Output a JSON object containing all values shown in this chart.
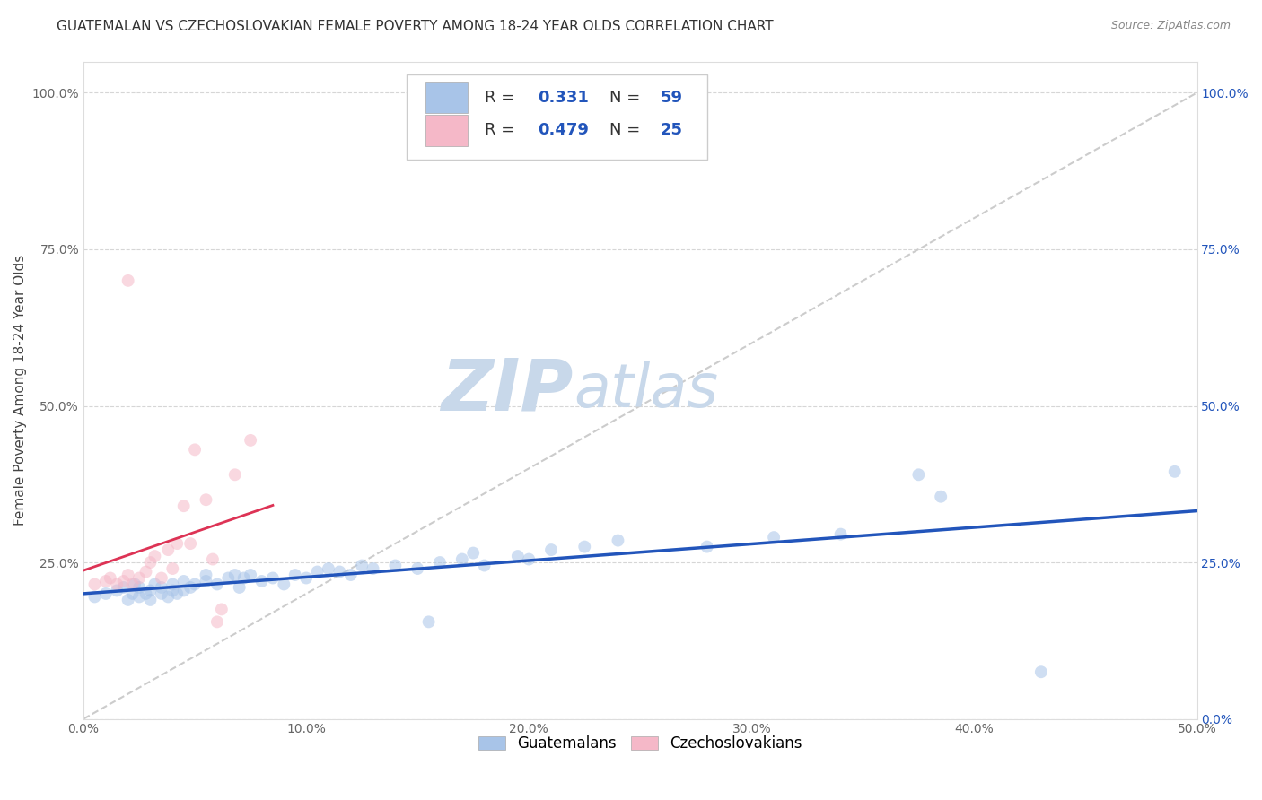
{
  "title": "GUATEMALAN VS CZECHOSLOVAKIAN FEMALE POVERTY AMONG 18-24 YEAR OLDS CORRELATION CHART",
  "source": "Source: ZipAtlas.com",
  "ylabel": "Female Poverty Among 18-24 Year Olds",
  "xlim": [
    0,
    0.5
  ],
  "ylim": [
    0,
    1.05
  ],
  "xticks": [
    0.0,
    0.1,
    0.2,
    0.3,
    0.4,
    0.5
  ],
  "xticklabels": [
    "0.0%",
    "10.0%",
    "20.0%",
    "30.0%",
    "40.0%",
    "50.0%"
  ],
  "yticks": [
    0.0,
    0.25,
    0.5,
    0.75,
    1.0
  ],
  "yticklabels_left": [
    "",
    "25.0%",
    "50.0%",
    "75.0%",
    "100.0%"
  ],
  "yticklabels_right": [
    "0.0%",
    "25.0%",
    "50.0%",
    "75.0%",
    "100.0%"
  ],
  "background_color": "#ffffff",
  "plot_background": "#ffffff",
  "grid_color": "#cccccc",
  "watermark": "ZIPatlas",
  "watermark_color": "#c8d8ea",
  "guatemalan_color": "#a8c4e8",
  "czechoslovakian_color": "#f5b8c8",
  "guatemalan_trend_color": "#2255bb",
  "czechoslovakian_trend_color": "#dd3355",
  "ref_line_color": "#cccccc",
  "guatemalan_scatter": [
    [
      0.005,
      0.195
    ],
    [
      0.01,
      0.2
    ],
    [
      0.015,
      0.205
    ],
    [
      0.018,
      0.21
    ],
    [
      0.02,
      0.19
    ],
    [
      0.022,
      0.2
    ],
    [
      0.023,
      0.215
    ],
    [
      0.025,
      0.195
    ],
    [
      0.025,
      0.21
    ],
    [
      0.028,
      0.2
    ],
    [
      0.03,
      0.19
    ],
    [
      0.03,
      0.205
    ],
    [
      0.032,
      0.215
    ],
    [
      0.035,
      0.2
    ],
    [
      0.035,
      0.21
    ],
    [
      0.038,
      0.195
    ],
    [
      0.04,
      0.205
    ],
    [
      0.04,
      0.215
    ],
    [
      0.042,
      0.2
    ],
    [
      0.045,
      0.205
    ],
    [
      0.045,
      0.22
    ],
    [
      0.048,
      0.21
    ],
    [
      0.05,
      0.215
    ],
    [
      0.055,
      0.22
    ],
    [
      0.055,
      0.23
    ],
    [
      0.06,
      0.215
    ],
    [
      0.065,
      0.225
    ],
    [
      0.068,
      0.23
    ],
    [
      0.07,
      0.21
    ],
    [
      0.072,
      0.225
    ],
    [
      0.075,
      0.23
    ],
    [
      0.08,
      0.22
    ],
    [
      0.085,
      0.225
    ],
    [
      0.09,
      0.215
    ],
    [
      0.095,
      0.23
    ],
    [
      0.1,
      0.225
    ],
    [
      0.105,
      0.235
    ],
    [
      0.11,
      0.24
    ],
    [
      0.115,
      0.235
    ],
    [
      0.12,
      0.23
    ],
    [
      0.125,
      0.245
    ],
    [
      0.13,
      0.24
    ],
    [
      0.14,
      0.245
    ],
    [
      0.15,
      0.24
    ],
    [
      0.155,
      0.155
    ],
    [
      0.16,
      0.25
    ],
    [
      0.17,
      0.255
    ],
    [
      0.175,
      0.265
    ],
    [
      0.18,
      0.245
    ],
    [
      0.195,
      0.26
    ],
    [
      0.2,
      0.255
    ],
    [
      0.21,
      0.27
    ],
    [
      0.225,
      0.275
    ],
    [
      0.24,
      0.285
    ],
    [
      0.28,
      0.275
    ],
    [
      0.31,
      0.29
    ],
    [
      0.34,
      0.295
    ],
    [
      0.375,
      0.39
    ],
    [
      0.385,
      0.355
    ],
    [
      0.43,
      0.075
    ],
    [
      0.49,
      0.395
    ]
  ],
  "czechoslovakian_scatter": [
    [
      0.005,
      0.215
    ],
    [
      0.01,
      0.22
    ],
    [
      0.012,
      0.225
    ],
    [
      0.015,
      0.215
    ],
    [
      0.018,
      0.22
    ],
    [
      0.02,
      0.23
    ],
    [
      0.022,
      0.215
    ],
    [
      0.025,
      0.225
    ],
    [
      0.028,
      0.235
    ],
    [
      0.03,
      0.25
    ],
    [
      0.032,
      0.26
    ],
    [
      0.035,
      0.225
    ],
    [
      0.038,
      0.27
    ],
    [
      0.04,
      0.24
    ],
    [
      0.042,
      0.28
    ],
    [
      0.045,
      0.34
    ],
    [
      0.048,
      0.28
    ],
    [
      0.05,
      0.43
    ],
    [
      0.055,
      0.35
    ],
    [
      0.058,
      0.255
    ],
    [
      0.06,
      0.155
    ],
    [
      0.062,
      0.175
    ],
    [
      0.068,
      0.39
    ],
    [
      0.075,
      0.445
    ],
    [
      0.02,
      0.7
    ]
  ],
  "title_fontsize": 11,
  "axis_label_fontsize": 11,
  "tick_fontsize": 10,
  "source_fontsize": 9,
  "scatter_size": 100,
  "scatter_alpha": 0.55
}
